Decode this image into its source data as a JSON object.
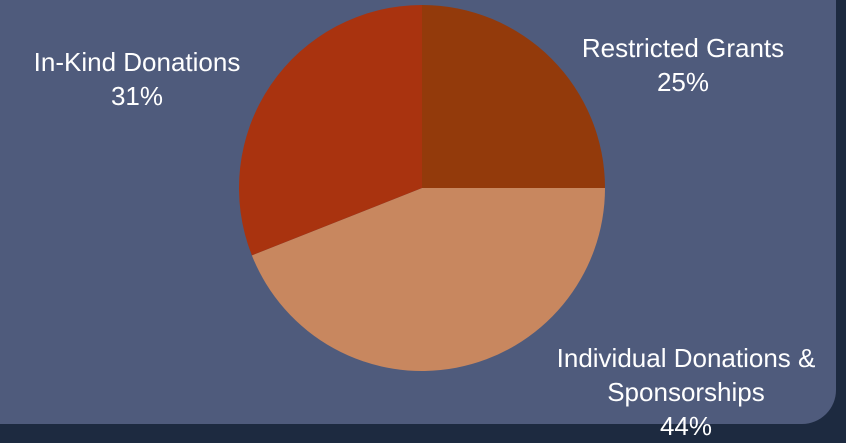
{
  "chart_data": {
    "type": "pie",
    "categories": [
      "Restricted Grants",
      "Individual Donations & Sponsorships",
      "In-Kind Donations"
    ],
    "values": [
      25,
      44,
      31
    ],
    "value_labels": [
      "25%",
      "44%",
      "31%"
    ],
    "colors": [
      "#933a0b",
      "#c8875f",
      "#a9330f"
    ]
  }
}
